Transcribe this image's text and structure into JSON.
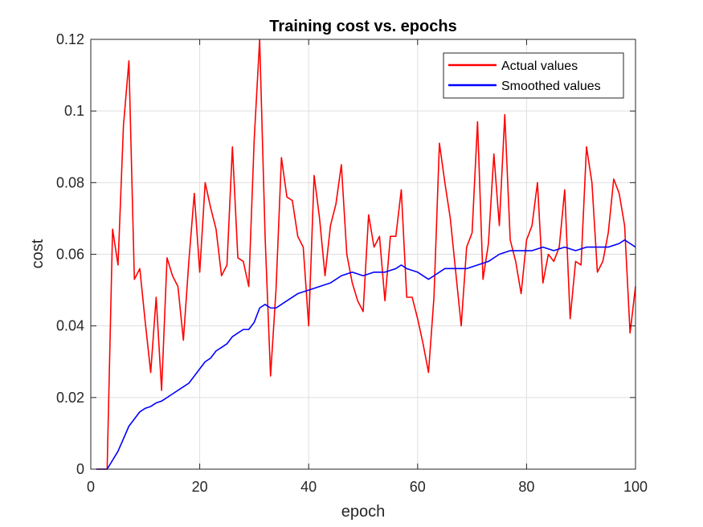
{
  "chart_data": {
    "type": "line",
    "title": "Training cost vs. epochs",
    "xlabel": "epoch",
    "ylabel": "cost",
    "xlim": [
      0,
      100
    ],
    "ylim": [
      0,
      0.12
    ],
    "xticks": [
      0,
      20,
      40,
      60,
      80,
      100
    ],
    "xtick_labels": [
      "0",
      "20",
      "40",
      "60",
      "80",
      "100"
    ],
    "yticks": [
      0,
      0.02,
      0.04,
      0.06,
      0.08,
      0.1,
      0.12
    ],
    "ytick_labels": [
      "0",
      "0.02",
      "0.04",
      "0.06",
      "0.08",
      "0.1",
      "0.12"
    ],
    "grid": true,
    "legend_position": "top-right",
    "series": [
      {
        "name": "Actual values",
        "color": "#ff0000",
        "x": [
          1,
          2,
          3,
          4,
          5,
          6,
          7,
          8,
          9,
          10,
          11,
          12,
          13,
          14,
          15,
          16,
          17,
          18,
          19,
          20,
          21,
          22,
          23,
          24,
          25,
          26,
          27,
          28,
          29,
          30,
          31,
          32,
          33,
          34,
          35,
          36,
          37,
          38,
          39,
          40,
          41,
          42,
          43,
          44,
          45,
          46,
          47,
          48,
          49,
          50,
          51,
          52,
          53,
          54,
          55,
          56,
          57,
          58,
          59,
          60,
          61,
          62,
          63,
          64,
          65,
          66,
          67,
          68,
          69,
          70,
          71,
          72,
          73,
          74,
          75,
          76,
          77,
          78,
          79,
          80,
          81,
          82,
          83,
          84,
          85,
          86,
          87,
          88,
          89,
          90,
          91,
          92,
          93,
          94,
          95,
          96,
          97,
          98,
          99,
          100
        ],
        "y": [
          0,
          0,
          0,
          0.067,
          0.057,
          0.096,
          0.114,
          0.053,
          0.056,
          0.041,
          0.027,
          0.048,
          0.022,
          0.059,
          0.054,
          0.051,
          0.036,
          0.058,
          0.077,
          0.055,
          0.08,
          0.073,
          0.067,
          0.054,
          0.057,
          0.09,
          0.059,
          0.058,
          0.051,
          0.092,
          0.12,
          0.065,
          0.026,
          0.05,
          0.087,
          0.076,
          0.075,
          0.065,
          0.062,
          0.04,
          0.082,
          0.07,
          0.054,
          0.068,
          0.074,
          0.085,
          0.06,
          0.052,
          0.047,
          0.044,
          0.071,
          0.062,
          0.065,
          0.047,
          0.065,
          0.065,
          0.078,
          0.048,
          0.048,
          0.042,
          0.035,
          0.027,
          0.048,
          0.091,
          0.08,
          0.07,
          0.055,
          0.04,
          0.062,
          0.066,
          0.097,
          0.053,
          0.063,
          0.088,
          0.068,
          0.099,
          0.064,
          0.058,
          0.049,
          0.064,
          0.068,
          0.08,
          0.052,
          0.06,
          0.058,
          0.062,
          0.078,
          0.042,
          0.058,
          0.057,
          0.09,
          0.08,
          0.055,
          0.058,
          0.066,
          0.081,
          0.077,
          0.068,
          0.038,
          0.051
        ]
      },
      {
        "name": "Smoothed values",
        "color": "#0000ff",
        "x": [
          1,
          2,
          3,
          5,
          7,
          9,
          10,
          11,
          12,
          13,
          15,
          17,
          18,
          19,
          20,
          21,
          22,
          23,
          24,
          25,
          26,
          27,
          28,
          29,
          30,
          31,
          32,
          33,
          34,
          36,
          38,
          40,
          42,
          44,
          46,
          48,
          50,
          52,
          54,
          56,
          57,
          58,
          60,
          62,
          63,
          65,
          67,
          69,
          71,
          73,
          75,
          77,
          79,
          81,
          83,
          85,
          87,
          89,
          91,
          93,
          95,
          97,
          98,
          99,
          100
        ],
        "y": [
          0,
          0,
          0,
          0.005,
          0.012,
          0.016,
          0.017,
          0.0175,
          0.0185,
          0.019,
          0.021,
          0.023,
          0.024,
          0.026,
          0.028,
          0.03,
          0.031,
          0.033,
          0.034,
          0.035,
          0.037,
          0.038,
          0.039,
          0.039,
          0.041,
          0.045,
          0.046,
          0.045,
          0.045,
          0.047,
          0.049,
          0.05,
          0.051,
          0.052,
          0.054,
          0.055,
          0.054,
          0.055,
          0.055,
          0.056,
          0.057,
          0.056,
          0.055,
          0.053,
          0.054,
          0.056,
          0.056,
          0.056,
          0.057,
          0.058,
          0.06,
          0.061,
          0.061,
          0.061,
          0.062,
          0.061,
          0.062,
          0.061,
          0.062,
          0.062,
          0.062,
          0.063,
          0.064,
          0.063,
          0.062
        ]
      }
    ]
  }
}
